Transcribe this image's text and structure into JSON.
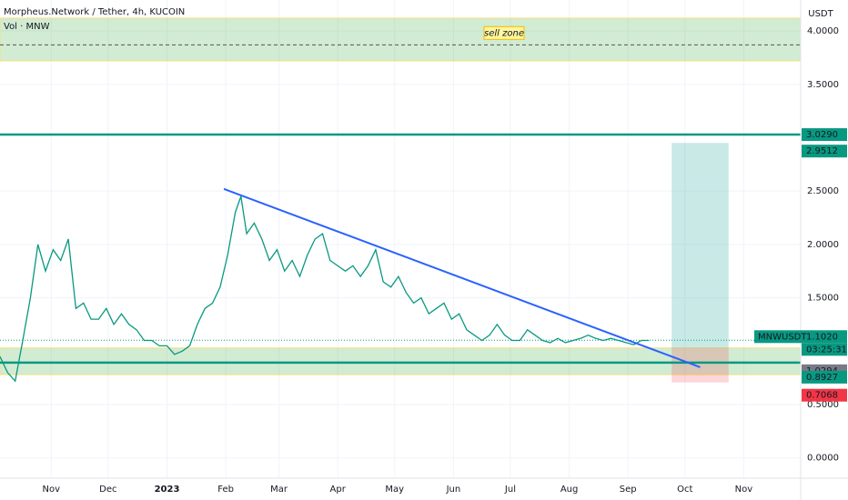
{
  "chart_data": {
    "type": "line",
    "title": "Morpheus.Network / Tether, 4h, KUCOIN",
    "subtitle": "Vol · MNW",
    "currency": "USDT",
    "symbol": "MNWUSDT",
    "countdown": "03:25:31",
    "annotation": "sell zone",
    "x": [
      4,
      8,
      12,
      16,
      20,
      24,
      28,
      32,
      36,
      40,
      44,
      48,
      52,
      56,
      60,
      64,
      68,
      72,
      76,
      80,
      84,
      88,
      92,
      96,
      100,
      104,
      108,
      112,
      116,
      120,
      124,
      128,
      131,
      134,
      138,
      142,
      146,
      150,
      154,
      158,
      162,
      166,
      170,
      174,
      178,
      182,
      186,
      190,
      194,
      198,
      202,
      206,
      210,
      214,
      218,
      222,
      226,
      230,
      234,
      238,
      242,
      246,
      250,
      254,
      258,
      262,
      266,
      270,
      274,
      278,
      282,
      286,
      290,
      294,
      298,
      302,
      306,
      310,
      314,
      318,
      322,
      326,
      330,
      334,
      338,
      342,
      346
    ],
    "series": [
      {
        "name": "MNWUSDT",
        "color": "#089981",
        "values": [
          0.95,
          0.8,
          0.72,
          1.1,
          1.5,
          2.0,
          1.75,
          1.95,
          1.85,
          2.05,
          1.4,
          1.45,
          1.3,
          1.3,
          1.4,
          1.25,
          1.35,
          1.25,
          1.2,
          1.1,
          1.1,
          1.05,
          1.05,
          0.97,
          1.0,
          1.05,
          1.25,
          1.4,
          1.45,
          1.6,
          1.9,
          2.3,
          2.45,
          2.1,
          2.2,
          2.05,
          1.85,
          1.95,
          1.75,
          1.85,
          1.7,
          1.9,
          2.05,
          2.1,
          1.85,
          1.8,
          1.75,
          1.8,
          1.7,
          1.8,
          1.95,
          1.65,
          1.6,
          1.7,
          1.55,
          1.45,
          1.5,
          1.35,
          1.4,
          1.45,
          1.3,
          1.35,
          1.2,
          1.15,
          1.1,
          1.15,
          1.25,
          1.15,
          1.1,
          1.1,
          1.2,
          1.15,
          1.1,
          1.08,
          1.12,
          1.08,
          1.1,
          1.12,
          1.15,
          1.12,
          1.1,
          1.12,
          1.1,
          1.08,
          1.06,
          1.1,
          1.1
        ]
      }
    ],
    "xlim": [
      4,
      426
    ],
    "ylim": [
      -0.19,
      4.29
    ],
    "xticks": [
      {
        "value": 31,
        "label": "Nov"
      },
      {
        "value": 61,
        "label": "Dec"
      },
      {
        "value": 92,
        "label": "2023"
      },
      {
        "value": 123,
        "label": "Feb"
      },
      {
        "value": 151,
        "label": "Mar"
      },
      {
        "value": 182,
        "label": "Apr"
      },
      {
        "value": 212,
        "label": "May"
      },
      {
        "value": 243,
        "label": "Jun"
      },
      {
        "value": 273,
        "label": "Jul"
      },
      {
        "value": 304,
        "label": "Aug"
      },
      {
        "value": 335,
        "label": "Sep"
      },
      {
        "value": 365,
        "label": "Oct"
      },
      {
        "value": 396,
        "label": "Nov"
      }
    ],
    "yticks": [
      {
        "value": 4,
        "label": "4.0000"
      },
      {
        "value": 3.5,
        "label": "3.5000"
      },
      {
        "value": 2.5,
        "label": "2.5000"
      },
      {
        "value": 2,
        "label": "2.0000"
      },
      {
        "value": 1.5,
        "label": "1.5000"
      },
      {
        "value": 0.5,
        "label": "0.5000"
      },
      {
        "value": 0,
        "label": "0.0000"
      }
    ],
    "grid": true,
    "trendline": {
      "x": [
        122,
        373
      ],
      "y": [
        2.52,
        0.85
      ],
      "color": "#2962ff"
    },
    "sell_zone": {
      "y": [
        3.72,
        4.12
      ],
      "mid": 3.87
    },
    "support_zone": {
      "y": [
        0.78,
        1.03
      ]
    },
    "hlines": [
      {
        "value": 3.029,
        "label": "3.0290"
      },
      {
        "value": 0.8927,
        "label": "0.8927"
      }
    ],
    "position": {
      "x": [
        358,
        388
      ],
      "target": {
        "value": 2.9512,
        "label": "2.9512"
      },
      "entry": {
        "value": 1.0294,
        "label": "1.0294"
      },
      "stop": {
        "value": 0.7068,
        "label": "0.7068"
      }
    },
    "last_price": {
      "value": 1.102,
      "label": "1.1020"
    }
  }
}
